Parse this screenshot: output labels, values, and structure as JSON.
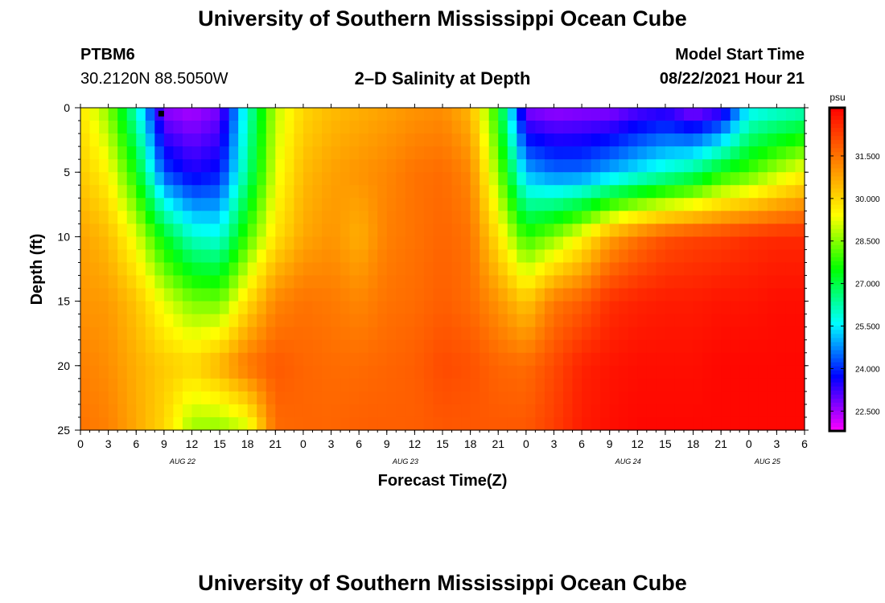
{
  "header": {
    "title_top": "University of Southern Mississippi Ocean Cube",
    "title_bottom": "University of Southern Mississippi Ocean Cube",
    "station_id": "PTBM6",
    "station_coords": "30.2120N  88.5050W",
    "model_start_label": "Model Start Time",
    "model_start_value": "08/22/2021 Hour 21"
  },
  "chart_data": {
    "type": "heatmap",
    "title": "2–D Salinity at Depth",
    "xlabel": "Forecast Time(Z)",
    "ylabel": "Depth (ft)",
    "x_unit": "forecast hour from Aug 22 00Z",
    "xlim": [
      0,
      78
    ],
    "ylim": [
      25,
      0
    ],
    "x_tick_values": [
      0,
      3,
      6,
      9,
      12,
      15,
      18,
      21,
      24,
      27,
      30,
      33,
      36,
      39,
      42,
      45,
      48,
      51,
      54,
      57,
      60,
      63,
      66,
      69,
      72,
      75,
      78
    ],
    "x_tick_labels": [
      "0",
      "3",
      "6",
      "9",
      "12",
      "15",
      "18",
      "21",
      "0",
      "3",
      "6",
      "9",
      "12",
      "15",
      "18",
      "21",
      "0",
      "3",
      "6",
      "9",
      "12",
      "15",
      "18",
      "21",
      "0",
      "3",
      "6"
    ],
    "y_tick_values": [
      0,
      5,
      10,
      15,
      20,
      25
    ],
    "y_tick_labels": [
      "0",
      "5",
      "10",
      "15",
      "20",
      "25"
    ],
    "date_labels": [
      {
        "label": "AUG 22",
        "x": 11
      },
      {
        "label": "AUG 23",
        "x": 35
      },
      {
        "label": "AUG 24",
        "x": 59
      },
      {
        "label": "AUG 25",
        "x": 74
      }
    ],
    "marker": {
      "x": 8.7,
      "y": 0.3
    },
    "colorbar": {
      "unit": "psu",
      "range": [
        21.8,
        33.2
      ],
      "tick_values": [
        22.5,
        24.0,
        25.5,
        27.0,
        28.5,
        30.0,
        31.5
      ],
      "tick_labels": [
        "22.500",
        "24.000",
        "25.500",
        "27.000",
        "28.500",
        "30.000",
        "31.500"
      ],
      "colors": [
        "#ff00ff",
        "#8000ff",
        "#0000ff",
        "#0080ff",
        "#00ffff",
        "#00ff80",
        "#00ff00",
        "#80ff00",
        "#ffff00",
        "#ffc000",
        "#ff8000",
        "#ff4000",
        "#ff0000"
      ]
    },
    "depths": [
      0,
      5,
      10,
      15,
      20,
      25
    ],
    "times": [
      0,
      3,
      6,
      9,
      12,
      15,
      18,
      21,
      24,
      27,
      30,
      33,
      36,
      39,
      42,
      45,
      48,
      51,
      54,
      57,
      60,
      63,
      66,
      69,
      72,
      75,
      78
    ],
    "salinity": [
      [
        29.8,
        28.5,
        26.0,
        22.6,
        22.4,
        22.8,
        26.0,
        28.9,
        30.0,
        30.4,
        30.6,
        30.8,
        31.0,
        31.1,
        30.5,
        27.5,
        22.7,
        22.5,
        22.6,
        22.6,
        23.0,
        23.2,
        22.5,
        23.0,
        25.5,
        25.8,
        26.0
      ],
      [
        30.2,
        29.5,
        27.5,
        24.2,
        23.5,
        23.8,
        26.5,
        29.2,
        30.4,
        30.8,
        31.0,
        31.2,
        31.5,
        31.6,
        31.2,
        28.5,
        25.0,
        24.5,
        24.5,
        25.0,
        25.5,
        26.0,
        26.5,
        27.5,
        28.0,
        28.8,
        29.5
      ],
      [
        30.8,
        30.4,
        29.2,
        27.3,
        26.0,
        25.8,
        28.0,
        29.8,
        30.7,
        31.0,
        30.6,
        31.3,
        31.5,
        31.7,
        31.5,
        29.8,
        27.8,
        28.5,
        29.5,
        30.8,
        31.5,
        32.0,
        32.2,
        32.3,
        32.5,
        32.6,
        32.6
      ],
      [
        31.0,
        30.9,
        30.3,
        29.2,
        28.4,
        28.3,
        29.9,
        31.2,
        31.5,
        31.4,
        31.2,
        31.5,
        31.6,
        31.8,
        31.6,
        31.0,
        30.2,
        31.4,
        31.8,
        32.5,
        32.7,
        32.8,
        32.8,
        32.9,
        32.9,
        33.0,
        33.0
      ],
      [
        31.3,
        31.1,
        30.6,
        30.2,
        30.0,
        30.6,
        31.5,
        31.9,
        31.7,
        31.6,
        31.6,
        31.7,
        31.8,
        32.1,
        32.0,
        31.7,
        31.6,
        32.1,
        32.7,
        32.9,
        33.0,
        33.0,
        33.0,
        33.1,
        33.1,
        33.1,
        33.1
      ],
      [
        31.5,
        31.3,
        30.7,
        30.0,
        28.6,
        28.5,
        29.0,
        31.6,
        31.7,
        31.7,
        31.8,
        31.8,
        31.8,
        31.9,
        31.9,
        31.9,
        31.9,
        32.3,
        32.8,
        33.0,
        33.1,
        33.1,
        33.1,
        33.1,
        33.1,
        33.1,
        33.1
      ]
    ]
  }
}
